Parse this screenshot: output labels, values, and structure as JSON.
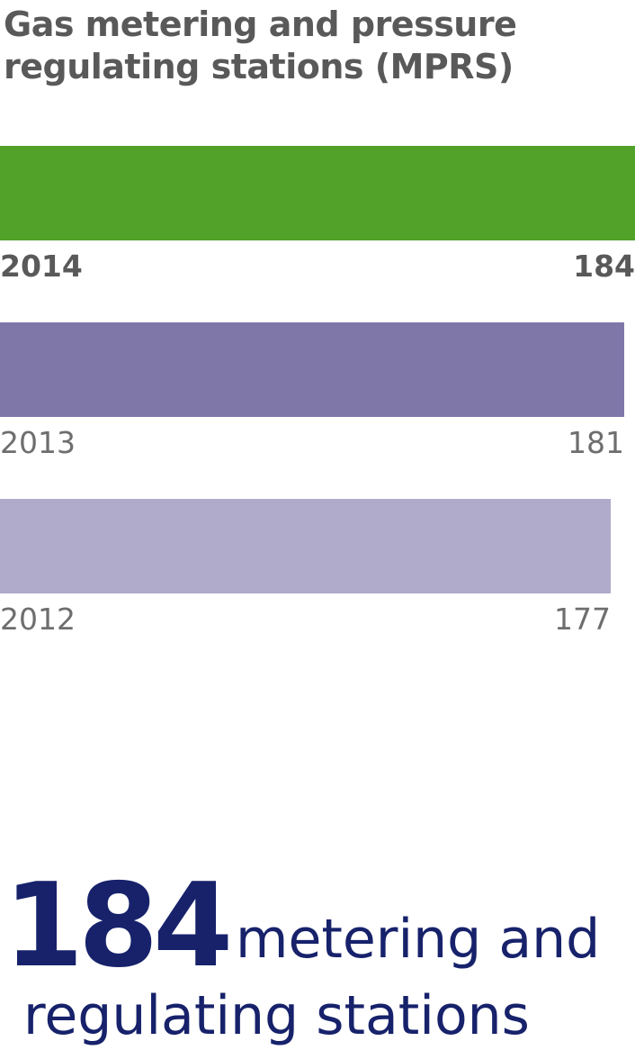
{
  "chart_data": {
    "type": "bar",
    "orientation": "horizontal",
    "title": "Gas metering and pressure\nregulating stations (MPRS)",
    "categories": [
      "2014",
      "2013",
      "2012"
    ],
    "values": [
      184,
      181,
      177
    ],
    "colors": [
      "#52a128",
      "#8077a9",
      "#b0aacb"
    ],
    "highlight": "2014",
    "xlim": [
      0,
      184
    ],
    "grid": false,
    "legend": "none"
  },
  "callout": {
    "number": "184",
    "line1": "metering and",
    "line2": "regulating stations",
    "color": "#17226b"
  }
}
